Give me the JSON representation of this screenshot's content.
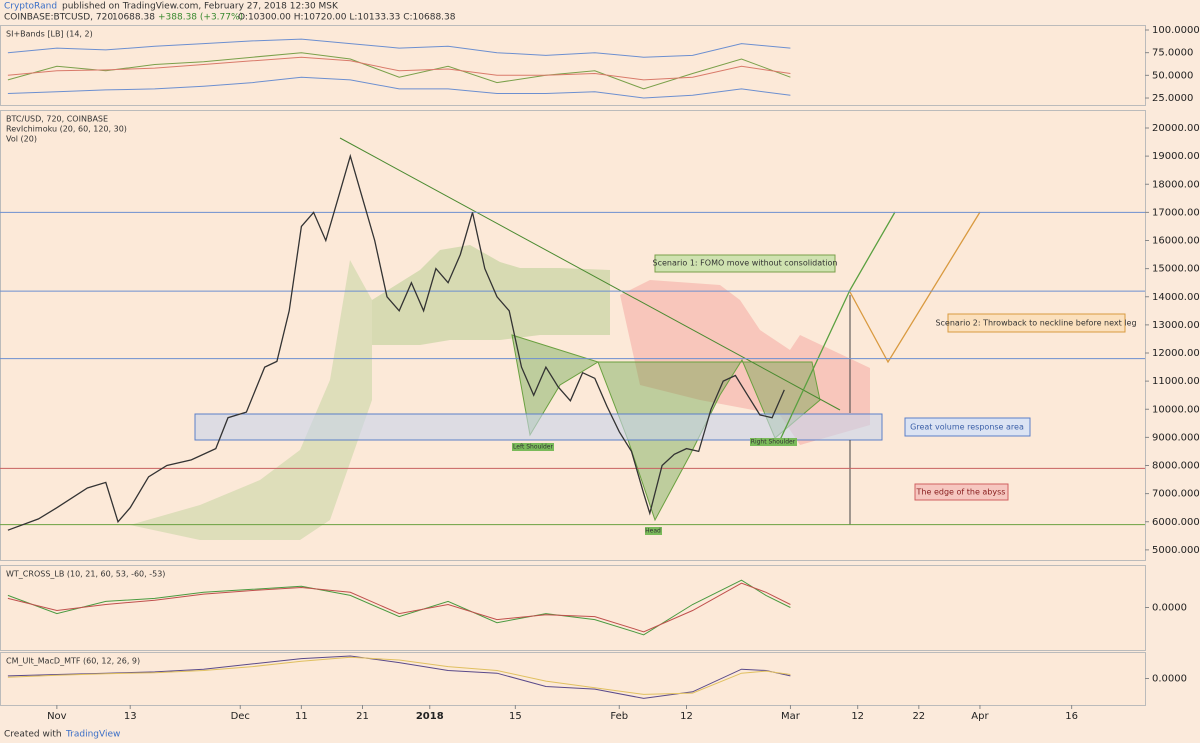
{
  "header": {
    "author": "CryptoRand",
    "published": "published on TradingView.com, February 27, 2018 12:30 MSK",
    "symbol": "COINBASE:BTCUSD, 720",
    "last": "10688.38",
    "change": "+388.38 (+3.77%)",
    "ohlc": "O:10300.00 H:10720.00 L:10133.33 C:10688.38"
  },
  "chart_data": [
    {
      "type": "line",
      "legend": [
        "SI+Bands [LB] (14, 2)"
      ],
      "xlim": [
        -9.3,
        178
      ],
      "ylim": [
        17.3,
        105.5
      ],
      "yticks": [
        {
          "value": 100,
          "label": "100.0000"
        },
        {
          "value": 75,
          "label": "75.0000"
        },
        {
          "value": 50,
          "label": "50.0000"
        },
        {
          "value": 25,
          "label": "25.0000"
        }
      ],
      "x": [
        -8,
        0,
        8,
        16,
        24,
        32,
        40,
        48,
        56,
        64,
        72,
        80,
        88,
        96,
        104,
        112,
        120
      ],
      "series": [
        {
          "color": "#7aa04a",
          "values": [
            45,
            60,
            55,
            62,
            65,
            70,
            75,
            68,
            48,
            60,
            42,
            50,
            55,
            35,
            52,
            68,
            48
          ]
        },
        {
          "color": "#d97a6a",
          "values": [
            50,
            55,
            56,
            58,
            62,
            66,
            70,
            66,
            55,
            57,
            50,
            50,
            52,
            45,
            48,
            60,
            52
          ]
        },
        {
          "color": "#6c8fd0",
          "values": [
            75,
            80,
            78,
            82,
            85,
            88,
            90,
            85,
            80,
            82,
            75,
            72,
            75,
            70,
            72,
            85,
            80
          ]
        },
        {
          "color": "#6c8fd0",
          "values": [
            30,
            32,
            34,
            35,
            38,
            42,
            48,
            45,
            35,
            35,
            30,
            30,
            32,
            25,
            28,
            35,
            28
          ]
        }
      ]
    },
    {
      "type": "line",
      "legend": [
        "BTC/USD, 720, COINBASE",
        "RevIchimoku (20, 60, 120, 30)",
        "Vol (20)"
      ],
      "color": "#333333",
      "xlim": [
        -9.3,
        178
      ],
      "ylim": [
        4640,
        20640
      ],
      "yticks": [
        {
          "value": 20000,
          "label": "20000.000"
        },
        {
          "value": 19000,
          "label": "19000.000"
        },
        {
          "value": 18000,
          "label": "18000.000"
        },
        {
          "value": 17000,
          "label": "17000.000"
        },
        {
          "value": 16000,
          "label": "16000.000"
        },
        {
          "value": 15000,
          "label": "15000.000"
        },
        {
          "value": 14000,
          "label": "14000.000"
        },
        {
          "value": 13000,
          "label": "13000.000"
        },
        {
          "value": 12000,
          "label": "12000.000"
        },
        {
          "value": 11000,
          "label": "11000.000"
        },
        {
          "value": 10000,
          "label": "10000.000"
        },
        {
          "value": 9000,
          "label": "9000.000"
        },
        {
          "value": 8000,
          "label": "8000.000"
        },
        {
          "value": 7000,
          "label": "7000.000"
        },
        {
          "value": 6000,
          "label": "6000.000"
        },
        {
          "value": 5000,
          "label": "5000.000"
        }
      ],
      "xticks": [
        {
          "value": 0,
          "label": "Nov"
        },
        {
          "value": 12,
          "label": "13"
        },
        {
          "value": 30,
          "label": "Dec"
        },
        {
          "value": 40,
          "label": "11"
        },
        {
          "value": 50,
          "label": "21"
        },
        {
          "value": 61,
          "label": "2018"
        },
        {
          "value": 75,
          "label": "15"
        },
        {
          "value": 92,
          "label": "Feb"
        },
        {
          "value": 103,
          "label": "12"
        },
        {
          "value": 120,
          "label": "Mar"
        },
        {
          "value": 131,
          "label": "12"
        },
        {
          "value": 141,
          "label": "22"
        },
        {
          "value": 151,
          "label": "Apr"
        },
        {
          "value": 166,
          "label": "16"
        }
      ],
      "levels": [
        {
          "value": 17000,
          "color": "#6c8fd0"
        },
        {
          "value": 14200,
          "color": "#6c8fd0"
        },
        {
          "value": 11800,
          "color": "#6c8fd0"
        },
        {
          "value": 7900,
          "color": "#c76060"
        },
        {
          "value": 5900,
          "color": "#6aa040"
        }
      ],
      "x": [
        -8,
        -3,
        0,
        5,
        8,
        10,
        12,
        15,
        18,
        22,
        26,
        28,
        31,
        34,
        36,
        38,
        40,
        42,
        44,
        46,
        48,
        50,
        52,
        54,
        56,
        58,
        60,
        62,
        64,
        66,
        68,
        70,
        72,
        74,
        76,
        78,
        80,
        82,
        84,
        86,
        88,
        90,
        92,
        94,
        96,
        97,
        99,
        101,
        103,
        105,
        107,
        109,
        111,
        113,
        115,
        117,
        119
      ],
      "values": [
        5700,
        6100,
        6500,
        7200,
        7400,
        6000,
        6500,
        7600,
        8000,
        8200,
        8600,
        9700,
        9900,
        11500,
        11700,
        13500,
        16500,
        17000,
        16000,
        17500,
        19000,
        17500,
        16000,
        14000,
        13500,
        14500,
        13500,
        15000,
        14500,
        15500,
        17000,
        15000,
        14000,
        13500,
        11500,
        10500,
        11500,
        10800,
        10300,
        11300,
        11100,
        10100,
        9200,
        8500,
        7000,
        6300,
        8000,
        8400,
        8600,
        8500,
        10000,
        11000,
        11200,
        10500,
        9800,
        9700,
        10688.38
      ]
    },
    {
      "type": "line",
      "legend": [
        "WT_CROSS_LB (10, 21, 60, 53, -60, -53)"
      ],
      "xlim": [
        -9.3,
        178
      ],
      "ylim": [
        -70,
        70
      ],
      "yticks": [
        {
          "value": 0,
          "label": "0.0000"
        }
      ],
      "x": [
        -8,
        0,
        8,
        16,
        24,
        32,
        40,
        48,
        56,
        64,
        72,
        80,
        88,
        96,
        104,
        112,
        116,
        120
      ],
      "series": [
        {
          "color": "#4a9a40",
          "values": [
            20,
            -10,
            10,
            15,
            25,
            30,
            35,
            20,
            -15,
            10,
            -25,
            -10,
            -20,
            -45,
            5,
            45,
            20,
            0
          ]
        },
        {
          "color": "#c0504d",
          "values": [
            15,
            -5,
            5,
            12,
            22,
            28,
            33,
            25,
            -10,
            5,
            -20,
            -12,
            -15,
            -40,
            -5,
            40,
            25,
            5
          ]
        }
      ]
    },
    {
      "type": "line",
      "legend": [
        "CM_Ult_MacD_MTF (60, 12, 26, 9)"
      ],
      "xlim": [
        -9.3,
        178
      ],
      "ylim": [
        -1,
        1
      ],
      "yticks": [
        {
          "value": 0,
          "label": "0.0000"
        }
      ],
      "x": [
        -8,
        0,
        8,
        16,
        24,
        32,
        40,
        48,
        56,
        64,
        72,
        80,
        88,
        96,
        104,
        112,
        116,
        120
      ],
      "series": [
        {
          "color": "#5a4a8a",
          "values": [
            0.1,
            0.15,
            0.2,
            0.25,
            0.35,
            0.55,
            0.75,
            0.85,
            0.6,
            0.3,
            0.2,
            -0.3,
            -0.4,
            -0.75,
            -0.5,
            0.35,
            0.3,
            0.1
          ]
        },
        {
          "color": "#e0c060",
          "values": [
            0.05,
            0.12,
            0.18,
            0.22,
            0.3,
            0.45,
            0.65,
            0.8,
            0.7,
            0.45,
            0.3,
            -0.1,
            -0.35,
            -0.6,
            -0.55,
            0.2,
            0.28,
            0.15
          ]
        }
      ]
    }
  ],
  "annotations": {
    "scenario1": "Scenario 1: FOMO move without consolidation",
    "scenario2": "Scenario 2: Throwback to neckline before next leg",
    "volume": "Great volume response area",
    "abyss": "The edge of the abyss",
    "left": "Left Shoulder",
    "head": "Head",
    "right": "Right Shoulder"
  },
  "footer": {
    "created": "Created with",
    "brand": "TradingView"
  }
}
